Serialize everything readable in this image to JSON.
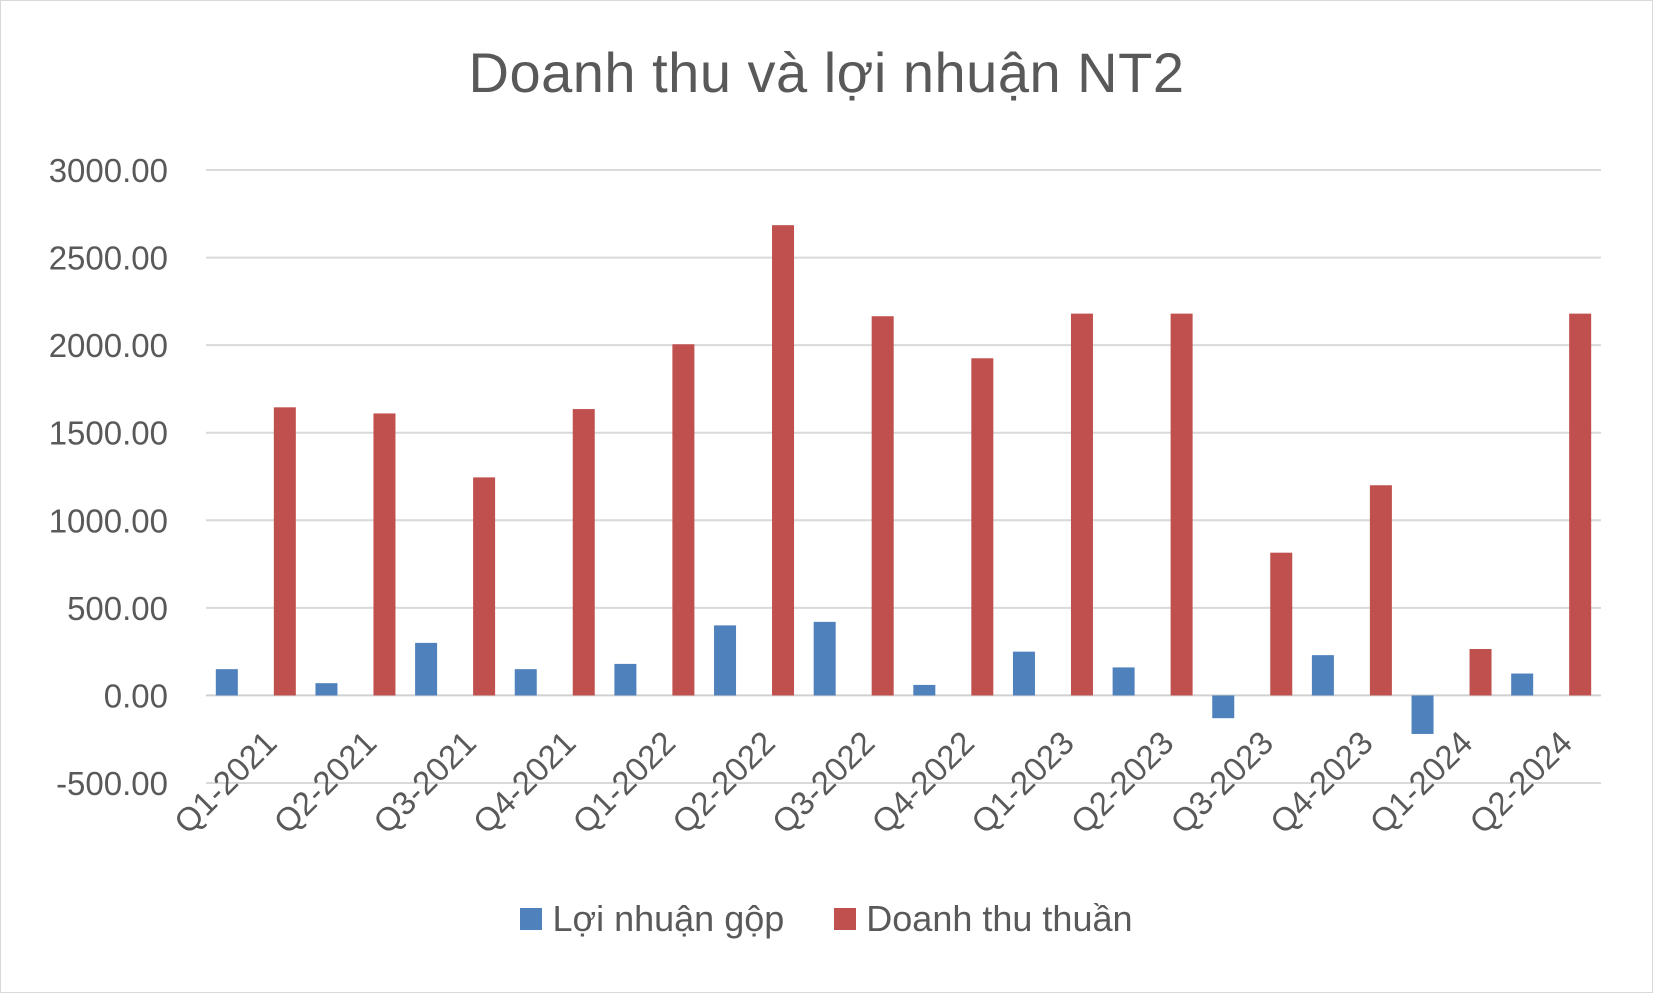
{
  "chart_data": {
    "type": "bar",
    "title": "Doanh thu và lợi nhuận NT2",
    "xlabel": "",
    "ylabel": "",
    "ylim": [
      -500,
      3000
    ],
    "yticks": [
      "3000.00",
      "2500.00",
      "2000.00",
      "1500.00",
      "1000.00",
      "500.00",
      "0.00",
      "-500.00"
    ],
    "ytick_values": [
      3000,
      2500,
      2000,
      1500,
      1000,
      500,
      0,
      -500
    ],
    "grid": true,
    "legend_position": "bottom",
    "categories": [
      "Q1-2021",
      "Q2-2021",
      "Q3-2021",
      "Q4-2021",
      "Q1-2022",
      "Q2-2022",
      "Q3-2022",
      "Q4-2022",
      "Q1-2023",
      "Q2-2023",
      "Q3-2023",
      "Q4-2023",
      "Q1-2024",
      "Q2-2024"
    ],
    "series": [
      {
        "name": "Lợi nhuận gộp",
        "color": "#4f81bd",
        "values": [
          150,
          70,
          300,
          150,
          180,
          400,
          420,
          60,
          250,
          160,
          -130,
          230,
          -220,
          125
        ]
      },
      {
        "name": "Doanh thu thuần",
        "color": "#c0504d",
        "values": [
          1645,
          1610,
          1245,
          1635,
          2005,
          2685,
          2165,
          1925,
          2180,
          2180,
          815,
          1200,
          265,
          2180
        ]
      }
    ]
  }
}
